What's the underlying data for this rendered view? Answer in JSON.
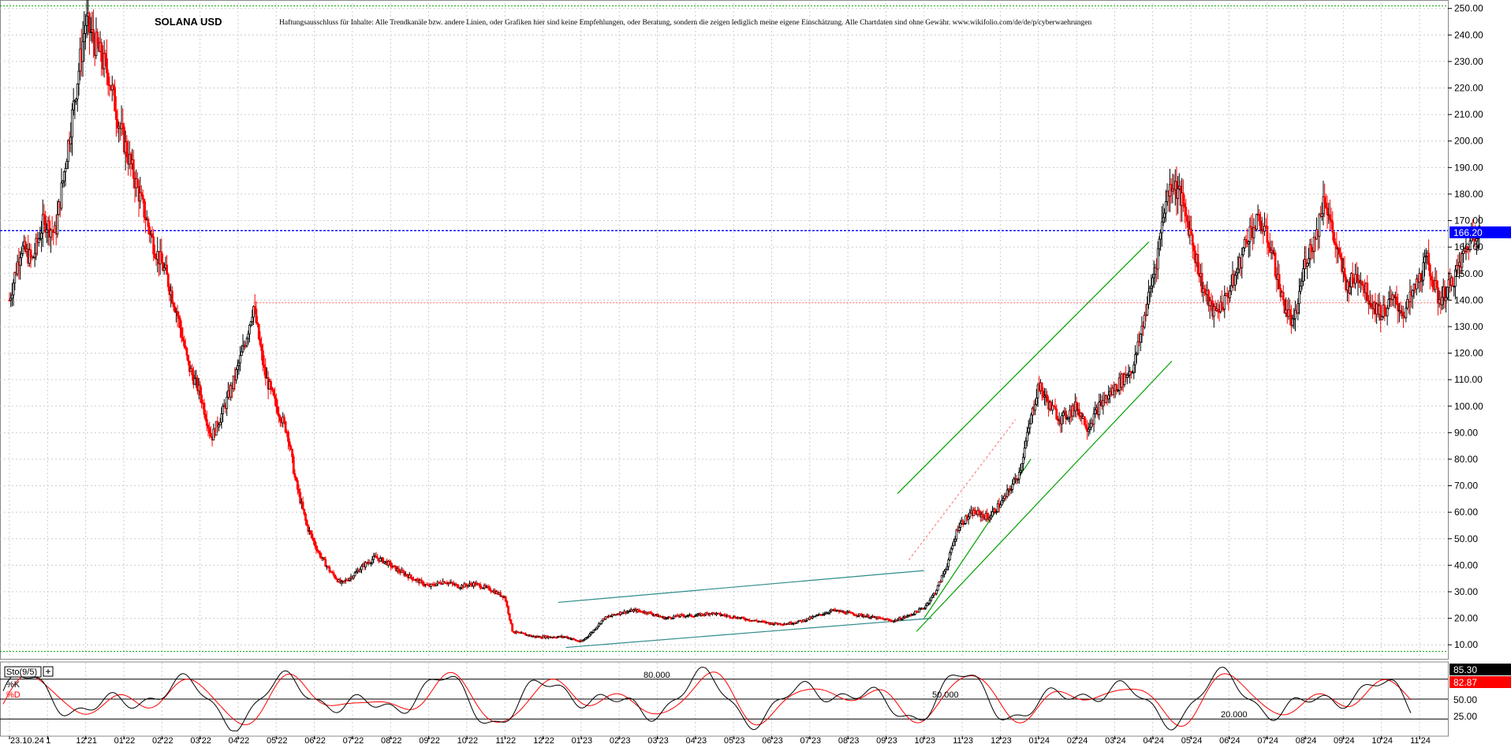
{
  "chart_data": {
    "type": "candlestick",
    "title": "SOLANA USD",
    "disclaimer": "Haftungsausschluss für Inhalte: Alle Trendkanäle bzw. andere Linien, oder Grafiken hier sind keine Empfehlungen, oder Beratung, sondern die zeigen lediglich meine eigene Einschätzung. Alle Chartdaten sind ohne Gewähr.  www.wikifolio.com/de/de/p/cyberwaehrungen",
    "ylim": [
      5,
      252
    ],
    "y_ticks": [
      "250.00",
      "240.00",
      "230.00",
      "220.00",
      "210.00",
      "200.00",
      "190.00",
      "180.00",
      "170.00",
      "160.00",
      "150.00",
      "140.00",
      "130.00",
      "120.00",
      "110.00",
      "100.00",
      "90.00",
      "80.00",
      "70.00",
      "60.00",
      "50.00",
      "40.00",
      "30.00",
      "20.00",
      "10.00"
    ],
    "x_labels": [
      "23.10.24",
      "1",
      "12'21",
      "01'22",
      "02'22",
      "03'22",
      "04'22",
      "05'22",
      "06'22",
      "07'22",
      "08'22",
      "09'22",
      "10'22",
      "11'22",
      "12'22",
      "01'23",
      "02'23",
      "03'23",
      "04'23",
      "05'23",
      "06'23",
      "07'23",
      "08'23",
      "09'23",
      "10'23",
      "11'23",
      "12'23",
      "01'24",
      "02'24",
      "03'24",
      "04'24",
      "05'24",
      "06'24",
      "07'24",
      "08'24",
      "09'24",
      "10'24",
      "11'24"
    ],
    "price_path": [
      [
        0,
        140
      ],
      [
        0.3,
        160
      ],
      [
        0.6,
        155
      ],
      [
        0.9,
        170
      ],
      [
        1.2,
        165
      ],
      [
        1.6,
        205
      ],
      [
        2.0,
        245
      ],
      [
        2.3,
        235
      ],
      [
        2.6,
        225
      ],
      [
        2.9,
        205
      ],
      [
        3.2,
        190
      ],
      [
        3.5,
        175
      ],
      [
        3.8,
        160
      ],
      [
        4.1,
        150
      ],
      [
        4.4,
        135
      ],
      [
        4.7,
        115
      ],
      [
        5.0,
        105
      ],
      [
        5.3,
        88
      ],
      [
        5.6,
        98
      ],
      [
        5.9,
        110
      ],
      [
        6.2,
        125
      ],
      [
        6.4,
        138
      ],
      [
        6.7,
        112
      ],
      [
        7.0,
        100
      ],
      [
        7.3,
        90
      ],
      [
        7.5,
        72
      ],
      [
        7.8,
        55
      ],
      [
        8.1,
        45
      ],
      [
        8.4,
        38
      ],
      [
        8.7,
        33
      ],
      [
        9.0,
        36
      ],
      [
        9.3,
        40
      ],
      [
        9.6,
        43
      ],
      [
        9.9,
        41
      ],
      [
        10.2,
        38
      ],
      [
        10.6,
        35
      ],
      [
        11.0,
        32
      ],
      [
        11.4,
        34
      ],
      [
        11.8,
        32
      ],
      [
        12.2,
        33
      ],
      [
        12.6,
        31
      ],
      [
        13.0,
        28
      ],
      [
        13.2,
        15
      ],
      [
        13.5,
        14
      ],
      [
        13.8,
        13
      ],
      [
        14.2,
        13
      ],
      [
        14.6,
        13
      ],
      [
        15.0,
        11
      ],
      [
        15.3,
        15
      ],
      [
        15.6,
        20
      ],
      [
        16.0,
        22
      ],
      [
        16.4,
        23
      ],
      [
        16.8,
        22
      ],
      [
        17.2,
        20
      ],
      [
        17.6,
        21
      ],
      [
        18.0,
        21
      ],
      [
        18.4,
        22
      ],
      [
        18.8,
        21
      ],
      [
        19.2,
        20
      ],
      [
        19.6,
        19
      ],
      [
        20.0,
        18
      ],
      [
        20.4,
        18
      ],
      [
        20.8,
        19
      ],
      [
        21.2,
        21
      ],
      [
        21.6,
        23
      ],
      [
        22.0,
        22
      ],
      [
        22.4,
        21
      ],
      [
        22.8,
        20
      ],
      [
        23.2,
        19
      ],
      [
        23.6,
        21
      ],
      [
        24.0,
        24
      ],
      [
        24.3,
        30
      ],
      [
        24.6,
        40
      ],
      [
        24.9,
        55
      ],
      [
        25.3,
        60
      ],
      [
        25.7,
        58
      ],
      [
        26.1,
        65
      ],
      [
        26.5,
        75
      ],
      [
        26.8,
        95
      ],
      [
        27.0,
        108
      ],
      [
        27.3,
        100
      ],
      [
        27.6,
        95
      ],
      [
        28.0,
        100
      ],
      [
        28.3,
        92
      ],
      [
        28.6,
        100
      ],
      [
        28.9,
        105
      ],
      [
        29.2,
        110
      ],
      [
        29.5,
        115
      ],
      [
        29.8,
        135
      ],
      [
        30.1,
        155
      ],
      [
        30.3,
        175
      ],
      [
        30.5,
        185
      ],
      [
        30.7,
        180
      ],
      [
        31.0,
        165
      ],
      [
        31.3,
        145
      ],
      [
        31.6,
        135
      ],
      [
        31.9,
        140
      ],
      [
        32.2,
        150
      ],
      [
        32.5,
        165
      ],
      [
        32.8,
        170
      ],
      [
        33.1,
        160
      ],
      [
        33.4,
        140
      ],
      [
        33.7,
        130
      ],
      [
        34.0,
        155
      ],
      [
        34.3,
        165
      ],
      [
        34.5,
        180
      ],
      [
        34.8,
        160
      ],
      [
        35.1,
        145
      ],
      [
        35.4,
        150
      ],
      [
        35.7,
        140
      ],
      [
        36.0,
        135
      ],
      [
        36.3,
        140
      ],
      [
        36.6,
        135
      ],
      [
        36.9,
        145
      ],
      [
        37.2,
        155
      ],
      [
        37.5,
        140
      ],
      [
        37.8,
        145
      ],
      [
        38.1,
        155
      ],
      [
        38.4,
        165
      ],
      [
        38.6,
        168
      ]
    ],
    "last_price": "166.20",
    "hline_blue": 166.2,
    "hline_red": 139,
    "indicator": {
      "name": "Sto(9/5)",
      "k_label": "%K",
      "d_label": "%D",
      "k_value": "85.30",
      "d_value": "82.87",
      "levels": [
        "80.000",
        "50.000",
        "20.000"
      ],
      "right_ticks": [
        "85.30",
        "82.87",
        "50.00",
        "25.00"
      ]
    },
    "colors": {
      "up": "#000000",
      "down": "#ff0000",
      "channel_green": "#00a000",
      "channel_teal": "#2e8b8b",
      "badge_blue": "#0000ff",
      "grid": "#cccccc"
    }
  }
}
